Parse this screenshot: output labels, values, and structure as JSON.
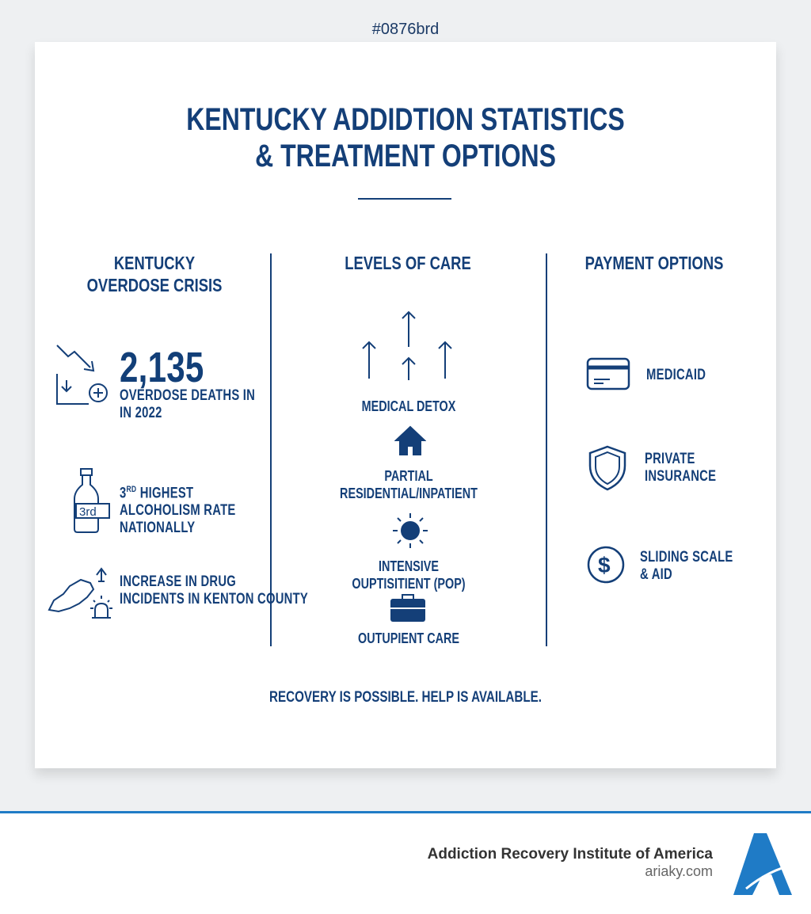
{
  "tag": "#0876brd",
  "title": [
    "KENTUCKY ADDIDTION STATISTICS",
    "& TREATMENT OPTIONS"
  ],
  "columns": {
    "crisis": {
      "heading": [
        "KENTUCKY",
        "OVERDOSE CRISIS"
      ],
      "stat_number": "2,135",
      "stat_text": [
        "OVERDOSE DEATHS IN",
        "IN 2022"
      ],
      "alcohol": {
        "rank": "3",
        "suffix": "RD",
        "line1": "HIGHEST",
        "line2": "ALCOHOLISM RATE",
        "line3": "NATIONALLY",
        "label": "3rd"
      },
      "kenton": [
        "INCREASE IN DRUG",
        "INCIDENTS IN KENTON COUNTY"
      ]
    },
    "care": {
      "heading": "LEVELS OF CARE",
      "items": [
        "MEDICAL DETOX",
        "PARTIAL",
        "RESIDENTIAL/INPATIENT",
        "INTENSIVE",
        "OUPTISITIENT (POP)",
        "OUTUPIENT CARE"
      ]
    },
    "payment": {
      "heading": "PAYMENT OPTIONS",
      "items": [
        "MEDICAID",
        "PRIVATE",
        "INSURANCE",
        "SLIDING SCALE",
        "& AID"
      ]
    }
  },
  "tagline": "RECOVERY IS POSSIBLE. HELP IS AVAILABLE.",
  "footer": {
    "org": "Addiction Recovery Institute of America",
    "site": "ariaky.com",
    "logo_letter": "A"
  },
  "colors": {
    "navy": "#143f78",
    "brand_blue": "#1f7bc6"
  }
}
